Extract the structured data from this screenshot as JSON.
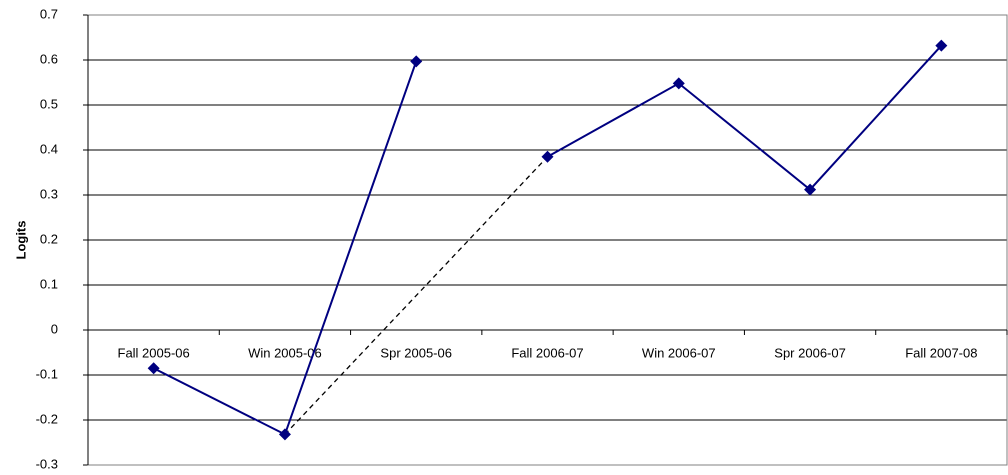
{
  "chart_data": {
    "type": "line",
    "ylabel": "Logits",
    "categories": [
      "Fall 2005-06",
      "Win 2005-06",
      "Spr 2005-06",
      "Fall 2006-07",
      "Win 2006-07",
      "Spr 2006-07",
      "Fall 2007-08"
    ],
    "series": [
      {
        "color": "#000080",
        "values": [
          -0.085,
          -0.232,
          0.597,
          0.385,
          0.548,
          0.312,
          0.632
        ]
      }
    ],
    "solid_segments": [
      [
        0,
        2
      ],
      [
        3,
        6
      ]
    ],
    "dashed_segments": [
      [
        1,
        3
      ]
    ],
    "ylim": [
      -0.3,
      0.7
    ],
    "yticks": [
      -0.3,
      -0.2,
      -0.1,
      0,
      0.1,
      0.2,
      0.3,
      0.4,
      0.5,
      0.6,
      0.7
    ],
    "grid": true
  }
}
